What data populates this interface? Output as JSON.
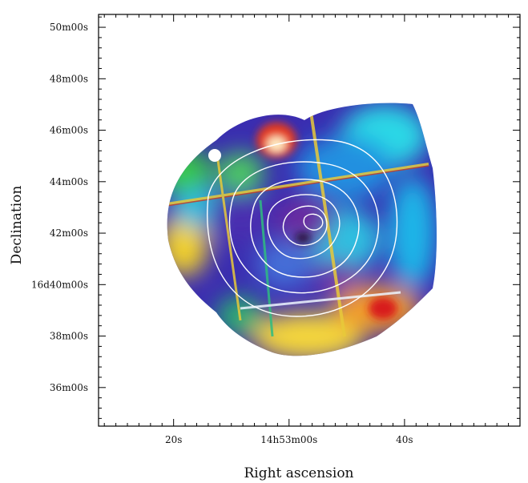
{
  "chart_data": {
    "type": "heatmap",
    "title": "",
    "xlabel": "Right ascension",
    "ylabel": "Declination",
    "x_ticks": [
      {
        "label": "20s",
        "ra_s": 20
      },
      {
        "label": "14h53m00s",
        "ra_s": 0
      },
      {
        "label": "40s",
        "ra_s": -20
      }
    ],
    "y_ticks": [
      {
        "label": "50m00s",
        "dec_arcmin": 50
      },
      {
        "label": "48m00s",
        "dec_arcmin": 48
      },
      {
        "label": "46m00s",
        "dec_arcmin": 46
      },
      {
        "label": "44m00s",
        "dec_arcmin": 44
      },
      {
        "label": "42m00s",
        "dec_arcmin": 42
      },
      {
        "label": "16d40m00s",
        "dec_arcmin": 40
      },
      {
        "label": "38m00s",
        "dec_arcmin": 38
      },
      {
        "label": "36m00s",
        "dec_arcmin": 36
      }
    ],
    "x_range_ra_s": [
      33,
      -40
    ],
    "y_range_dec_arcmin": [
      34.5,
      50.5
    ],
    "x_reversed": true,
    "grid": false,
    "colormap": "rainbow (purple-blue-cyan-green-yellow-red-white)",
    "contour_color": "#ffffff",
    "contour_center": {
      "ra_s": -3,
      "dec_arcmin": 42.2
    },
    "contour_levels": 6,
    "colors": {
      "background": "#ffffff",
      "axis": "#000000"
    }
  }
}
